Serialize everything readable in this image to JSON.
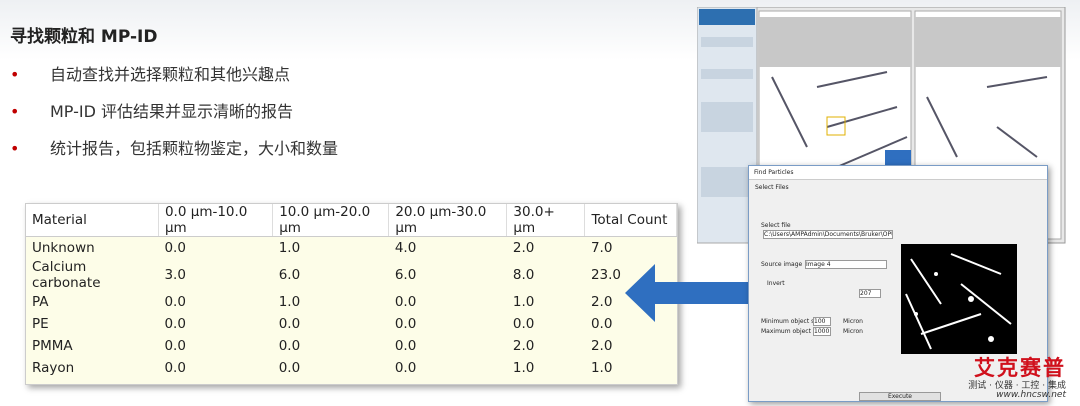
{
  "header": {
    "title": "寻找颗粒和 MP-ID"
  },
  "bullets": [
    "自动查找并选择颗粒和其他兴趣点",
    "MP-ID 评估结果并显示清晰的报告",
    "统计报告，包括颗粒物鉴定，大小和数量"
  ],
  "table": {
    "columns": [
      "Material",
      "0.0 µm-10.0 µm",
      "10.0 µm-20.0 µm",
      "20.0 µm-30.0 µm",
      "30.0+ µm",
      "Total Count"
    ],
    "rows": [
      [
        "Unknown",
        "0.0",
        "1.0",
        "4.0",
        "2.0",
        "7.0"
      ],
      [
        "Calcium carbonate",
        "3.0",
        "6.0",
        "6.0",
        "8.0",
        "23.0"
      ],
      [
        "PA",
        "0.0",
        "1.0",
        "0.0",
        "1.0",
        "2.0"
      ],
      [
        "PE",
        "0.0",
        "0.0",
        "0.0",
        "0.0",
        "0.0"
      ],
      [
        "PMMA",
        "0.0",
        "0.0",
        "0.0",
        "2.0",
        "2.0"
      ],
      [
        "Rayon",
        "0.0",
        "0.0",
        "0.0",
        "1.0",
        "1.0"
      ]
    ]
  },
  "dialog": {
    "title": "Find Particles",
    "tab": "Select Files",
    "select_file": "Select file",
    "path": "C:\\Users\\AMPAdmin\\Documents\\Bruker\\OPUS",
    "source_label": "Source image",
    "source_value": "Image 4",
    "invert": "Invert",
    "threshold": "207",
    "min_label": "Minimum object size",
    "min_value": "100",
    "max_label": "Maximum object size",
    "max_value": "1000",
    "unit": "Micron",
    "execute": "Execute"
  },
  "logo": {
    "name": "艾克赛普",
    "tagline": "测试 · 仪器 · 工控 · 集成",
    "url": "www.hncsw.net"
  }
}
